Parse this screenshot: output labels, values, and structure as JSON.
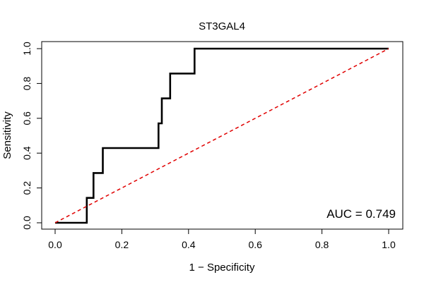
{
  "chart_data": {
    "type": "line",
    "title": "ST3GAL4",
    "xlabel": "1 − Specificity",
    "ylabel": "Sensitivity",
    "xlim": [
      0,
      1
    ],
    "ylim": [
      0,
      1
    ],
    "x_ticks": [
      "0.0",
      "0.2",
      "0.4",
      "0.6",
      "0.8",
      "1.0"
    ],
    "y_ticks": [
      "0.0",
      "0.2",
      "0.4",
      "0.6",
      "0.8",
      "1.0"
    ],
    "annotation": "AUC = 0.749",
    "series": [
      {
        "name": "ROC curve",
        "color": "#000000",
        "x": [
          0.0,
          0.095,
          0.095,
          0.115,
          0.115,
          0.143,
          0.143,
          0.31,
          0.31,
          0.32,
          0.32,
          0.345,
          0.345,
          0.418,
          0.418,
          1.0
        ],
        "y": [
          0.0,
          0.0,
          0.143,
          0.143,
          0.286,
          0.286,
          0.429,
          0.429,
          0.571,
          0.571,
          0.714,
          0.714,
          0.857,
          0.857,
          1.0,
          1.0
        ]
      },
      {
        "name": "Reference line",
        "color": "#e00000",
        "style": "dashed",
        "x": [
          0,
          1
        ],
        "y": [
          0,
          1
        ]
      }
    ]
  }
}
